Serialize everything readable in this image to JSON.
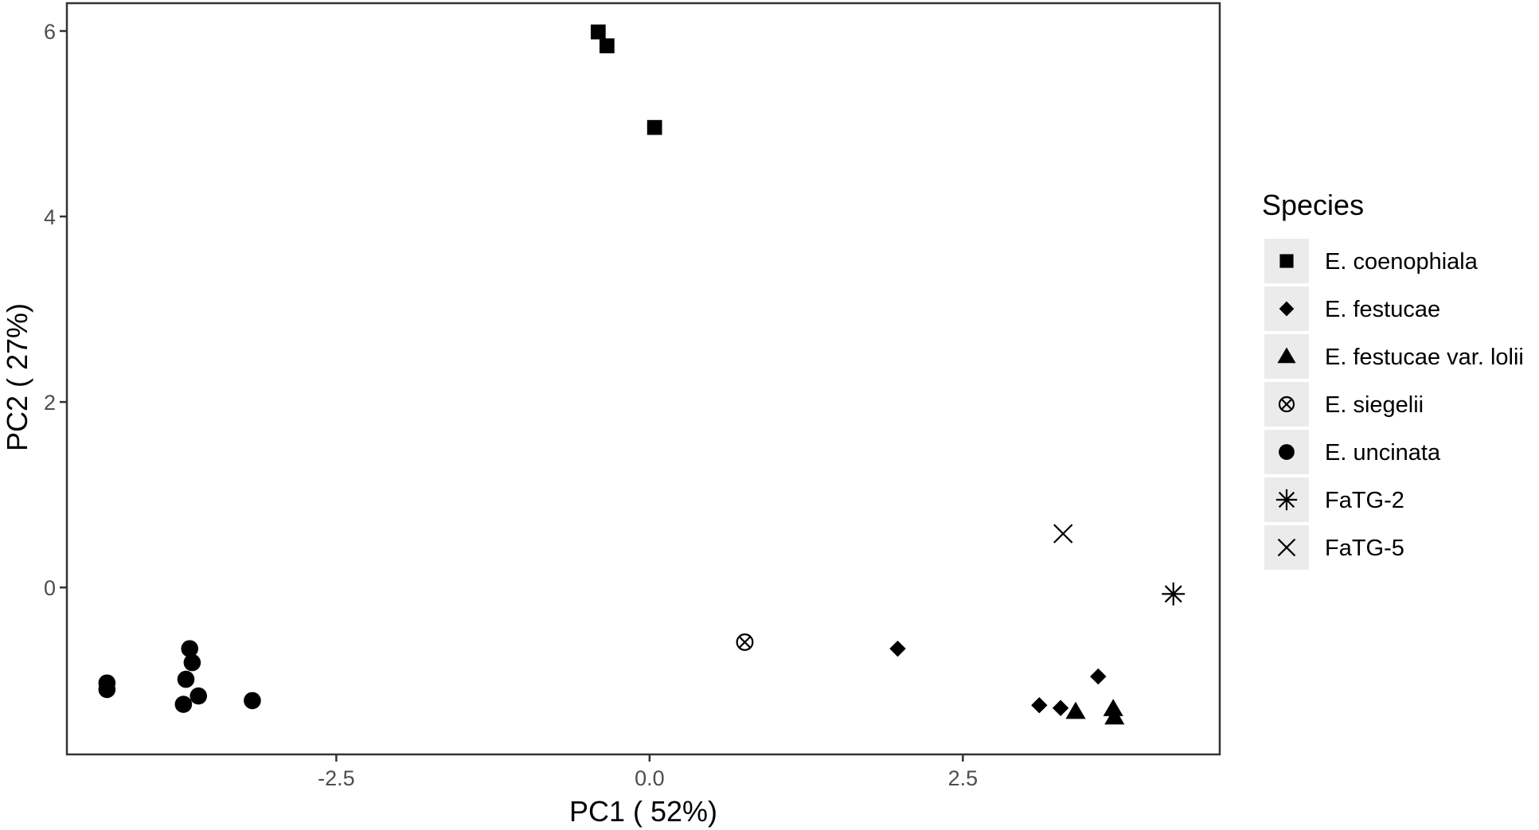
{
  "chart_data": {
    "type": "scatter",
    "xlabel": "PC1 ( 52%)",
    "ylabel": "PC2 ( 27%)",
    "xlim": [
      -4.65,
      4.55
    ],
    "ylim": [
      -1.8,
      6.3
    ],
    "x_ticks": [
      {
        "value": -2.5,
        "label": "-2.5"
      },
      {
        "value": 0,
        "label": "0.0"
      },
      {
        "value": 2.5,
        "label": "2.5"
      }
    ],
    "y_ticks": [
      {
        "value": 0,
        "label": "0"
      },
      {
        "value": 2,
        "label": "2"
      },
      {
        "value": 4,
        "label": "4"
      },
      {
        "value": 6,
        "label": "6"
      }
    ],
    "grid": false,
    "legend": {
      "title": "Species",
      "position": "right"
    },
    "series": [
      {
        "name": "E. coenophiala",
        "shape": "square",
        "points": [
          [
            -0.41,
            5.99
          ],
          [
            -0.34,
            5.84
          ],
          [
            0.04,
            4.96
          ]
        ]
      },
      {
        "name": "E. festucae",
        "shape": "diamond",
        "points": [
          [
            1.98,
            -0.66
          ],
          [
            3.58,
            -0.96
          ],
          [
            3.11,
            -1.27
          ],
          [
            3.28,
            -1.3
          ]
        ]
      },
      {
        "name": "E. festucae var. lolii",
        "shape": "triangle",
        "points": [
          [
            3.4,
            -1.34
          ],
          [
            3.7,
            -1.31
          ],
          [
            3.71,
            -1.4
          ]
        ]
      },
      {
        "name": "E. siegelii",
        "shape": "circle-cross",
        "points": [
          [
            0.76,
            -0.59
          ]
        ]
      },
      {
        "name": "E. uncinata",
        "shape": "circle",
        "points": [
          [
            -4.33,
            -1.03
          ],
          [
            -4.33,
            -1.1
          ],
          [
            -3.67,
            -0.66
          ],
          [
            -3.65,
            -0.81
          ],
          [
            -3.7,
            -0.99
          ],
          [
            -3.6,
            -1.17
          ],
          [
            -3.72,
            -1.26
          ],
          [
            -3.17,
            -1.22
          ]
        ]
      },
      {
        "name": "FaTG-2",
        "shape": "asterisk",
        "points": [
          [
            4.18,
            -0.07
          ]
        ]
      },
      {
        "name": "FaTG-5",
        "shape": "cross",
        "points": [
          [
            3.3,
            0.58
          ]
        ]
      }
    ],
    "colors": {
      "marker": "#000000",
      "legend_key_bg": "#ebebeb",
      "tick_text": "#4d4d4d"
    }
  }
}
